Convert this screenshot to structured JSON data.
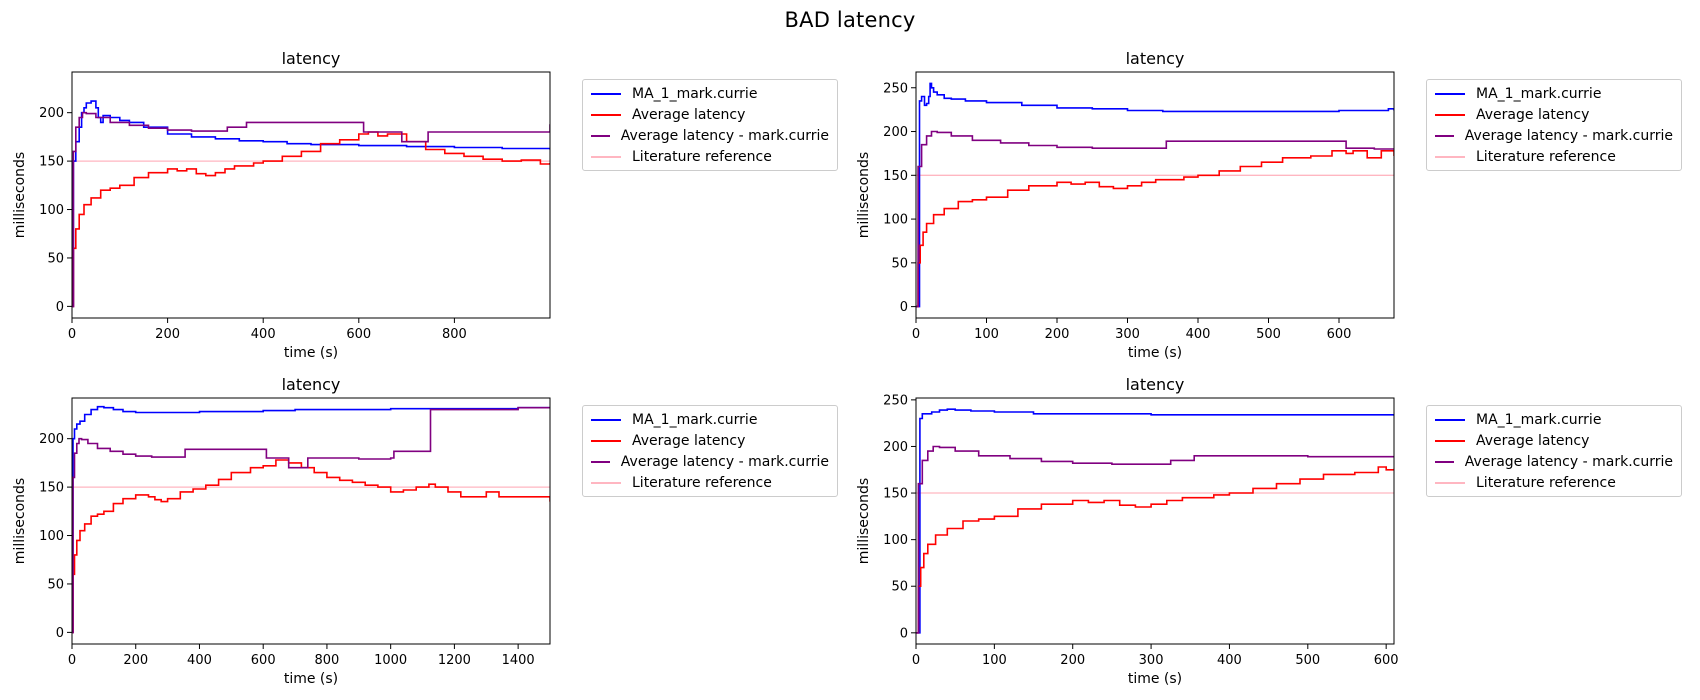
{
  "figure": {
    "suptitle": "BAD latency"
  },
  "legend_entries": [
    "MA_1_mark.currie",
    "Average latency",
    "Average latency - mark.currie",
    "Literature reference"
  ],
  "colors": {
    "MA_1_mark.currie": "#0000ff",
    "Average latency": "#ff0000",
    "Average latency - mark.currie": "#800080",
    "Literature reference": "#ffb6c1"
  },
  "chart_data": [
    {
      "type": "line",
      "title": "latency",
      "xlabel": "time (s)",
      "ylabel": "milliseconds",
      "xlim": [
        0,
        1000
      ],
      "ylim": [
        -12,
        242
      ],
      "xticks": [
        0,
        200,
        400,
        600,
        800
      ],
      "yticks": [
        0,
        50,
        100,
        150,
        200
      ],
      "legend": "outside-right",
      "series": [
        {
          "name": "MA_1_mark.currie",
          "x": [
            0,
            3,
            8,
            15,
            20,
            25,
            30,
            40,
            50,
            55,
            60,
            65,
            80,
            100,
            120,
            150,
            200,
            250,
            300,
            350,
            400,
            450,
            500,
            600,
            700,
            800,
            900,
            1000
          ],
          "y": [
            0,
            150,
            170,
            185,
            200,
            205,
            210,
            212,
            205,
            195,
            190,
            197,
            195,
            192,
            190,
            185,
            178,
            175,
            173,
            171,
            170,
            168,
            167,
            166,
            165,
            164,
            163,
            162
          ]
        },
        {
          "name": "Average latency",
          "x": [
            0,
            3,
            8,
            15,
            25,
            40,
            60,
            80,
            100,
            130,
            160,
            200,
            220,
            240,
            260,
            280,
            300,
            320,
            340,
            360,
            380,
            400,
            440,
            480,
            520,
            560,
            600,
            620,
            640,
            660,
            700,
            740,
            780,
            820,
            860,
            900,
            940,
            980,
            1000
          ],
          "y": [
            0,
            60,
            80,
            95,
            105,
            112,
            120,
            122,
            125,
            133,
            138,
            142,
            140,
            142,
            137,
            135,
            138,
            142,
            145,
            145,
            148,
            150,
            155,
            160,
            168,
            172,
            178,
            180,
            176,
            178,
            170,
            162,
            158,
            155,
            152,
            150,
            151,
            147,
            148
          ]
        },
        {
          "name": "Average latency - mark.currie",
          "x": [
            0,
            3,
            8,
            15,
            22,
            30,
            50,
            80,
            120,
            160,
            200,
            250,
            300,
            320,
            325,
            360,
            365,
            400,
            500,
            600,
            610,
            680,
            690,
            740,
            745,
            800,
            900,
            980,
            1000
          ],
          "y": [
            0,
            160,
            185,
            195,
            200,
            199,
            195,
            190,
            187,
            184,
            182,
            181,
            181,
            181,
            185,
            185,
            190,
            190,
            190,
            190,
            180,
            180,
            170,
            170,
            180,
            180,
            180,
            180,
            188
          ]
        },
        {
          "name": "Literature reference",
          "x": [
            0,
            1000
          ],
          "y": [
            150,
            150
          ]
        }
      ]
    },
    {
      "type": "line",
      "title": "latency",
      "xlabel": "time (s)",
      "ylabel": "milliseconds",
      "xlim": [
        0,
        678
      ],
      "ylim": [
        -13,
        268
      ],
      "xticks": [
        0,
        100,
        200,
        300,
        400,
        500,
        600
      ],
      "yticks": [
        0,
        50,
        100,
        150,
        200,
        250
      ],
      "legend": "outside-right",
      "series": [
        {
          "name": "MA_1_mark.currie",
          "x": [
            0,
            3,
            5,
            8,
            12,
            15,
            18,
            20,
            22,
            25,
            30,
            40,
            50,
            70,
            100,
            150,
            200,
            250,
            300,
            350,
            400,
            450,
            500,
            550,
            600,
            650,
            670,
            678
          ],
          "y": [
            0,
            0,
            235,
            240,
            230,
            232,
            240,
            255,
            250,
            245,
            242,
            238,
            237,
            235,
            233,
            230,
            227,
            226,
            224,
            223,
            223,
            223,
            223,
            223,
            224,
            224,
            226,
            224
          ]
        },
        {
          "name": "Average latency",
          "x": [
            0,
            3,
            6,
            10,
            15,
            25,
            40,
            60,
            80,
            100,
            130,
            160,
            200,
            220,
            240,
            260,
            280,
            300,
            320,
            340,
            360,
            380,
            400,
            430,
            460,
            490,
            520,
            560,
            590,
            610,
            620,
            640,
            660,
            678
          ],
          "y": [
            0,
            50,
            70,
            85,
            95,
            105,
            112,
            120,
            122,
            125,
            133,
            138,
            142,
            140,
            142,
            137,
            135,
            138,
            142,
            145,
            145,
            148,
            150,
            155,
            160,
            165,
            170,
            172,
            178,
            175,
            178,
            170,
            178,
            172
          ]
        },
        {
          "name": "Average latency - mark.currie",
          "x": [
            0,
            3,
            8,
            15,
            22,
            30,
            50,
            80,
            120,
            160,
            200,
            250,
            300,
            350,
            355,
            400,
            500,
            600,
            610,
            650,
            678
          ],
          "y": [
            0,
            160,
            185,
            195,
            200,
            199,
            195,
            190,
            187,
            184,
            182,
            181,
            181,
            181,
            189,
            189,
            189,
            189,
            181,
            180,
            180
          ]
        },
        {
          "name": "Literature reference",
          "x": [
            0,
            678
          ],
          "y": [
            150,
            150
          ]
        }
      ]
    },
    {
      "type": "line",
      "title": "latency",
      "xlabel": "time (s)",
      "ylabel": "milliseconds",
      "xlim": [
        0,
        1500
      ],
      "ylim": [
        -12,
        242
      ],
      "xticks": [
        0,
        200,
        400,
        600,
        800,
        1000,
        1200,
        1400
      ],
      "yticks": [
        0,
        50,
        100,
        150,
        200
      ],
      "legend": "outside-right",
      "series": [
        {
          "name": "MA_1_mark.currie",
          "x": [
            0,
            3,
            8,
            15,
            25,
            40,
            60,
            80,
            100,
            130,
            160,
            200,
            300,
            400,
            500,
            600,
            700,
            800,
            900,
            1000,
            1100,
            1200,
            1300,
            1400,
            1500
          ],
          "y": [
            0,
            200,
            210,
            215,
            218,
            225,
            230,
            233,
            232,
            230,
            228,
            227,
            227,
            228,
            228,
            229,
            230,
            230,
            230,
            231,
            231,
            231,
            231,
            232,
            232
          ]
        },
        {
          "name": "Average latency",
          "x": [
            0,
            3,
            8,
            15,
            25,
            40,
            60,
            80,
            100,
            130,
            160,
            200,
            240,
            260,
            280,
            300,
            340,
            380,
            420,
            460,
            500,
            560,
            600,
            640,
            680,
            720,
            760,
            800,
            840,
            880,
            920,
            960,
            1000,
            1040,
            1080,
            1120,
            1140,
            1180,
            1220,
            1260,
            1300,
            1340,
            1380,
            1420,
            1460,
            1500
          ],
          "y": [
            0,
            60,
            80,
            95,
            105,
            112,
            120,
            122,
            125,
            133,
            138,
            142,
            140,
            137,
            135,
            138,
            145,
            148,
            152,
            158,
            165,
            170,
            172,
            178,
            175,
            170,
            165,
            160,
            157,
            155,
            152,
            150,
            145,
            147,
            150,
            153,
            150,
            145,
            140,
            140,
            145,
            140,
            140,
            140,
            140,
            135
          ]
        },
        {
          "name": "Average latency - mark.currie",
          "x": [
            0,
            3,
            8,
            15,
            22,
            30,
            50,
            80,
            120,
            160,
            200,
            250,
            300,
            350,
            355,
            400,
            500,
            600,
            610,
            650,
            680,
            690,
            730,
            740,
            800,
            900,
            1000,
            1010,
            1100,
            1120,
            1125,
            1200,
            1300,
            1400,
            1500
          ],
          "y": [
            0,
            160,
            185,
            195,
            200,
            199,
            195,
            190,
            187,
            184,
            182,
            181,
            181,
            181,
            189,
            189,
            189,
            189,
            180,
            180,
            170,
            170,
            170,
            180,
            180,
            179,
            180,
            187,
            187,
            187,
            230,
            230,
            230,
            232,
            232
          ]
        },
        {
          "name": "Literature reference",
          "x": [
            0,
            1500
          ],
          "y": [
            150,
            150
          ]
        }
      ]
    },
    {
      "type": "line",
      "title": "latency",
      "xlabel": "time (s)",
      "ylabel": "milliseconds",
      "xlim": [
        0,
        610
      ],
      "ylim": [
        -12,
        252
      ],
      "xticks": [
        0,
        100,
        200,
        300,
        400,
        500,
        600
      ],
      "yticks": [
        0,
        50,
        100,
        150,
        200,
        250
      ],
      "legend": "outside-right",
      "series": [
        {
          "name": "MA_1_mark.currie",
          "x": [
            0,
            3,
            5,
            8,
            12,
            20,
            30,
            40,
            50,
            70,
            100,
            150,
            200,
            250,
            300,
            350,
            400,
            450,
            500,
            550,
            600,
            610
          ],
          "y": [
            0,
            0,
            230,
            235,
            235,
            237,
            239,
            240,
            239,
            238,
            237,
            235,
            235,
            235,
            234,
            234,
            234,
            234,
            234,
            234,
            234,
            233
          ]
        },
        {
          "name": "Average latency",
          "x": [
            0,
            3,
            6,
            10,
            15,
            25,
            40,
            60,
            80,
            100,
            130,
            160,
            200,
            220,
            240,
            260,
            280,
            300,
            320,
            340,
            360,
            380,
            400,
            430,
            460,
            490,
            520,
            560,
            590,
            600,
            610
          ],
          "y": [
            0,
            50,
            70,
            85,
            95,
            105,
            112,
            120,
            122,
            125,
            133,
            138,
            142,
            140,
            142,
            137,
            135,
            138,
            142,
            145,
            145,
            148,
            150,
            155,
            160,
            165,
            170,
            172,
            178,
            175,
            176
          ]
        },
        {
          "name": "Average latency - mark.currie",
          "x": [
            0,
            3,
            8,
            15,
            22,
            30,
            50,
            80,
            120,
            160,
            200,
            250,
            300,
            320,
            325,
            350,
            355,
            400,
            500,
            600,
            610
          ],
          "y": [
            0,
            160,
            185,
            195,
            200,
            199,
            195,
            190,
            187,
            184,
            182,
            181,
            181,
            181,
            185,
            185,
            190,
            190,
            189,
            189,
            189
          ]
        },
        {
          "name": "Literature reference",
          "x": [
            0,
            610
          ],
          "y": [
            150,
            150
          ]
        }
      ]
    }
  ]
}
